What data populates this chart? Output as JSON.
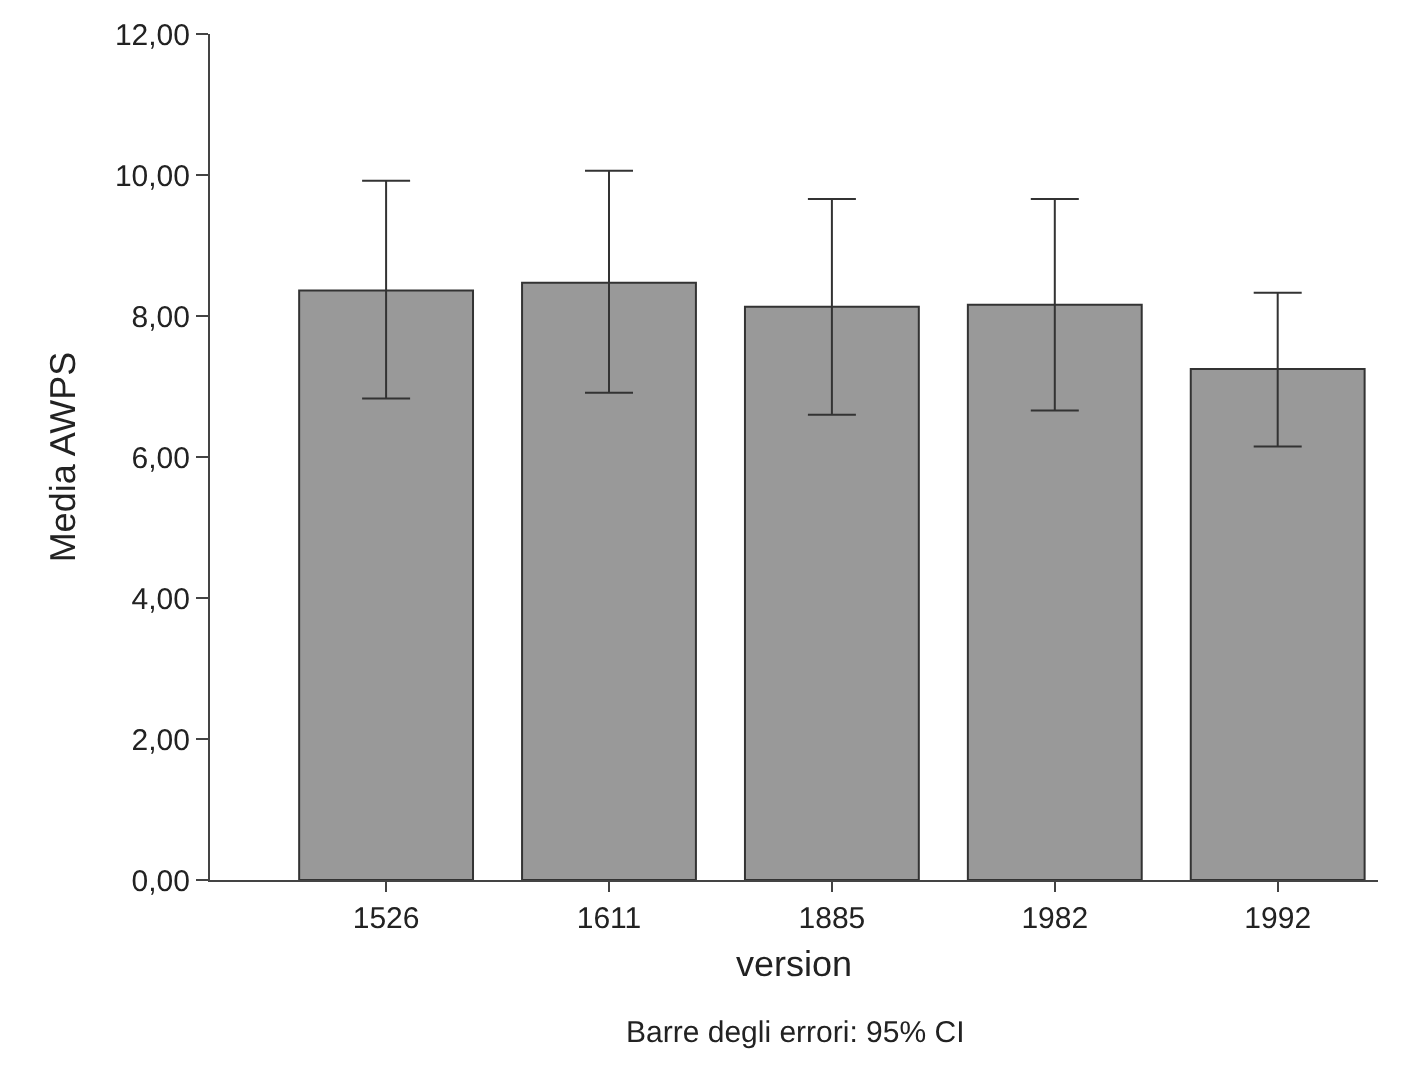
{
  "chart_data": {
    "type": "bar",
    "xlabel": "version",
    "ylabel": "Media AWPS",
    "categories": [
      "1526",
      "1611",
      "1885",
      "1982",
      "1992"
    ],
    "values": [
      8.36,
      8.47,
      8.13,
      8.16,
      7.25
    ],
    "errors": [
      [
        6.83,
        9.92
      ],
      [
        6.91,
        10.06
      ],
      [
        6.6,
        9.66
      ],
      [
        6.66,
        9.66
      ],
      [
        6.15,
        8.33
      ]
    ],
    "color": "#999999",
    "ylim": [
      0,
      12
    ],
    "yticks": [
      {
        "value": 0,
        "label": "0,00"
      },
      {
        "value": 2,
        "label": "2,00"
      },
      {
        "value": 4,
        "label": "4,00"
      },
      {
        "value": 6,
        "label": "6,00"
      },
      {
        "value": 8,
        "label": "8,00"
      },
      {
        "value": 10,
        "label": "10,00"
      },
      {
        "value": 12,
        "label": "12,00"
      }
    ],
    "grid": false,
    "annotations": [
      "Barre degli errori: 95% CI"
    ]
  }
}
